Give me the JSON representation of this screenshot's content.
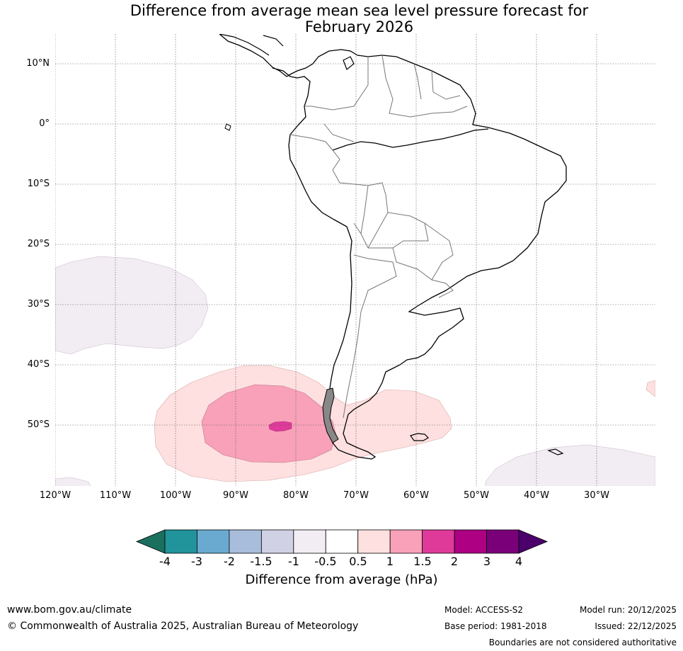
{
  "title": {
    "line1": "Difference from average mean sea level pressure forecast for",
    "line2": "February 2026"
  },
  "map": {
    "lat_labels": [
      "10°N",
      "0°",
      "10°S",
      "20°S",
      "30°S",
      "40°S",
      "50°S"
    ],
    "lon_labels": [
      "120°W",
      "110°W",
      "100°W",
      "90°W",
      "80°W",
      "70°W",
      "60°W",
      "50°W",
      "40°W",
      "30°W"
    ]
  },
  "colorbar": {
    "ticks": [
      "-4",
      "-3",
      "-2",
      "-1.5",
      "-1",
      "-0.5",
      "0.5",
      "1",
      "1.5",
      "2",
      "3",
      "4"
    ],
    "colors": [
      "#1a6f5f",
      "#20939b",
      "#6aaad0",
      "#a8bcdb",
      "#d0d1e4",
      "#f2ecf3",
      "#ffffff",
      "#fde0df",
      "#f8a1b9",
      "#df3a9a",
      "#ad0082",
      "#7a007a",
      "#4b006b"
    ],
    "label": "Difference from average (hPa)"
  },
  "footer": {
    "website": "www.bom.gov.au/climate",
    "copyright": "© Commonwealth of Australia 2025, Australian Bureau of Meteorology",
    "model": "Model: ACCESS-S2",
    "base_period": "Base period: 1981-2018",
    "model_run": "Model run: 20/12/2025",
    "issued": "Issued: 22/12/2025",
    "disclaimer": "Boundaries are not considered authoritative"
  }
}
